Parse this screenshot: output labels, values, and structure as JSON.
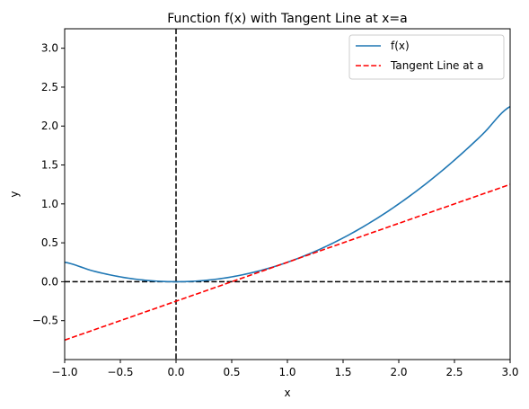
{
  "chart_data": {
    "type": "line",
    "title": "Function f(x) with Tangent Line at x=a",
    "xlabel": "x",
    "ylabel": "y",
    "xlim": [
      -1.0,
      3.0
    ],
    "ylim": [
      -1.0,
      3.25
    ],
    "xticks": [
      -1.0,
      -0.5,
      0.0,
      0.5,
      1.0,
      1.5,
      2.0,
      2.5,
      3.0
    ],
    "xtick_labels": [
      "−1.0",
      "−0.5",
      "0.0",
      "0.5",
      "1.0",
      "1.5",
      "2.0",
      "2.5",
      "3.0"
    ],
    "yticks": [
      -0.5,
      0.0,
      0.5,
      1.0,
      1.5,
      2.0,
      2.5,
      3.0
    ],
    "ytick_labels": [
      "−0.5",
      "0.0",
      "0.5",
      "1.0",
      "1.5",
      "2.0",
      "2.5",
      "3.0"
    ],
    "grid": false,
    "legend_position": "top-right",
    "series": [
      {
        "name": "f(x)",
        "color": "#1f77b4",
        "style": "solid",
        "x": [
          -1.0,
          -0.75,
          -0.5,
          -0.25,
          0.0,
          0.25,
          0.5,
          0.75,
          1.0,
          1.25,
          1.5,
          1.75,
          2.0,
          2.25,
          2.5,
          2.75,
          3.0
        ],
        "y": [
          0.25,
          0.1406,
          0.0625,
          0.0156,
          0.0,
          0.0156,
          0.0625,
          0.1406,
          0.25,
          0.3906,
          0.5625,
          0.7656,
          1.0,
          1.2656,
          1.5625,
          1.8906,
          2.25
        ]
      },
      {
        "name": "Tangent Line at a",
        "color": "#ff0000",
        "style": "dashed",
        "x": [
          -1.0,
          3.0
        ],
        "y": [
          -0.75,
          1.25
        ]
      }
    ],
    "reference_lines": [
      {
        "orientation": "horizontal",
        "value": 0.0,
        "color": "#000000",
        "style": "dashed"
      },
      {
        "orientation": "vertical",
        "value": 0.0,
        "color": "#000000",
        "style": "dashed"
      }
    ]
  }
}
